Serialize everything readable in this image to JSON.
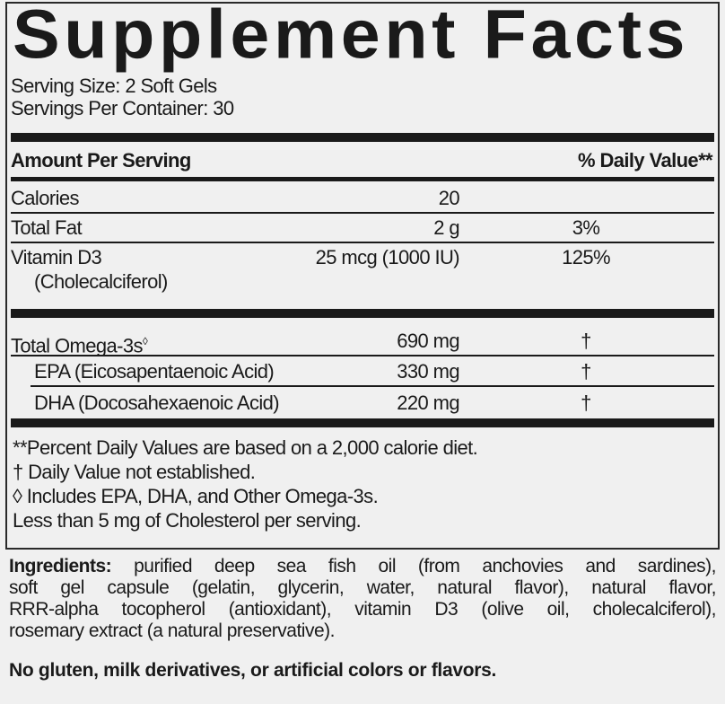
{
  "title": "Supplement Facts",
  "serving_size": "Serving Size: 2 Soft Gels",
  "servings_per_container": "Servings Per Container: 30",
  "header": {
    "amount": "Amount Per Serving",
    "dv": "% Daily Value**"
  },
  "rows": [
    {
      "name": "Calories",
      "amount": "20",
      "dv": ""
    },
    {
      "name": "Total Fat",
      "amount": "2 g",
      "dv": "3%"
    },
    {
      "name": "Vitamin D3",
      "name2": "(Cholecalciferol)",
      "amount": "25 mcg (1000 IU)",
      "dv": "125%"
    },
    {
      "name": "Total Omega-3s",
      "sup": "◊",
      "amount": "690 mg",
      "dv": "†"
    },
    {
      "name": "EPA (Eicosapentaenoic Acid)",
      "amount": "330 mg",
      "dv": "†"
    },
    {
      "name": "DHA (Docosahexaenoic Acid)",
      "amount": "220 mg",
      "dv": "†"
    }
  ],
  "footnotes": [
    "**Percent Daily Values are based on a 2,000 calorie diet.",
    "† Daily Value not established.",
    "◊ Includes EPA, DHA, and Other Omega-3s.",
    "Less than 5 mg of Cholesterol per serving."
  ],
  "ingredients": {
    "label": "Ingredients:",
    "lines": [
      "purified deep sea fish oil (from anchovies and sardines),",
      "soft gel capsule (gelatin, glycerin, water, natural flavor), natural flavor,",
      "RRR-alpha tocopherol (antioxidant), vitamin D3 (olive oil, cholecalciferol),",
      "rosemary extract (a natural preservative)."
    ]
  },
  "allergen_statement": "No gluten, milk derivatives, or artificial colors or flavors."
}
